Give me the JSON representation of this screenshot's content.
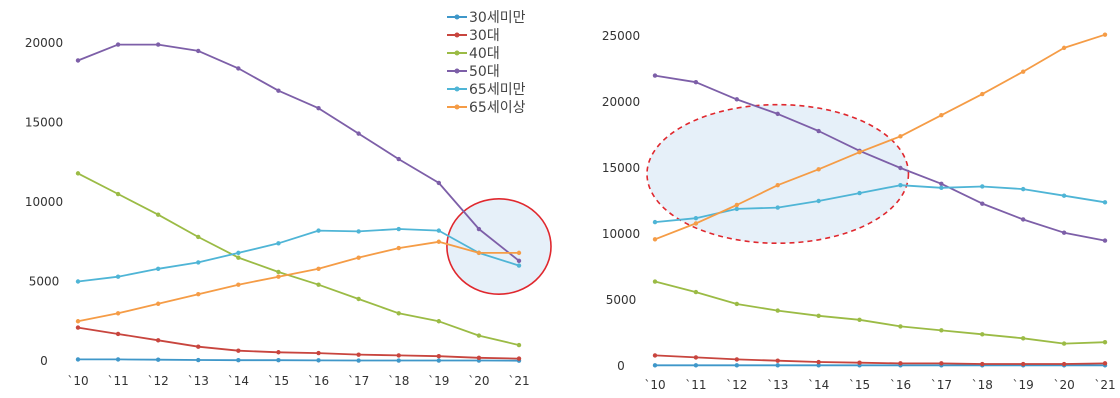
{
  "colors": {
    "30세미만": "#3f97c9",
    "30대": "#c8453e",
    "40대": "#9bbb45",
    "50대": "#7d5fa8",
    "65세미만": "#4fb5d6",
    "65세이상": "#f59c46",
    "highlight_stroke": "#e0282e",
    "highlight_fill": "#e2edf8"
  },
  "chart_data": [
    {
      "type": "line",
      "title": "",
      "xlabel": "",
      "ylabel": "",
      "categories": [
        "`10",
        "`11",
        "`12",
        "`13",
        "`14",
        "`15",
        "`16",
        "`17",
        "`18",
        "`19",
        "`20",
        "`21"
      ],
      "ylim": [
        0,
        20000
      ],
      "yticks": [
        0,
        5000,
        10000,
        15000,
        20000
      ],
      "ytick_labels": [
        "0",
        "5000",
        "10000",
        "15000",
        "20000"
      ],
      "grid": false,
      "legend": {
        "position": "top-right",
        "entries": [
          "30세미만",
          "30대",
          "40대",
          "50대",
          "65세미만",
          "65세이상"
        ]
      },
      "series": [
        {
          "name": "30세미만",
          "values": [
            100,
            100,
            80,
            60,
            50,
            50,
            40,
            30,
            30,
            30,
            30,
            20
          ]
        },
        {
          "name": "30대",
          "values": [
            2100,
            1700,
            1300,
            900,
            650,
            550,
            500,
            400,
            350,
            300,
            200,
            150
          ]
        },
        {
          "name": "40대",
          "values": [
            11800,
            10500,
            9200,
            7800,
            6500,
            5600,
            4800,
            3900,
            3000,
            2500,
            1600,
            1000
          ]
        },
        {
          "name": "50대",
          "values": [
            18900,
            19900,
            19900,
            19500,
            18400,
            17000,
            15900,
            14300,
            12700,
            11200,
            8300,
            6300
          ]
        },
        {
          "name": "65세미만",
          "values": [
            5000,
            5300,
            5800,
            6200,
            6800,
            7400,
            8200,
            8150,
            8300,
            8200,
            6800,
            6000
          ]
        },
        {
          "name": "65세이상",
          "values": [
            2500,
            3000,
            3600,
            4200,
            4800,
            5300,
            5800,
            6500,
            7100,
            7500,
            6800,
            6800
          ]
        }
      ],
      "annotation": {
        "shape": "circle",
        "x_from": "`20",
        "x_to": "`21",
        "y_from": 4200,
        "y_to": 10200
      }
    },
    {
      "type": "line",
      "title": "",
      "xlabel": "",
      "ylabel": "",
      "categories": [
        "`10",
        "`11",
        "`12",
        "`13",
        "`14",
        "`15",
        "`16",
        "`17",
        "`18",
        "`19",
        "`20",
        "`21"
      ],
      "ylim": [
        0,
        25000
      ],
      "yticks": [
        0,
        5000,
        10000,
        15000,
        20000,
        25000
      ],
      "ytick_labels": [
        "0",
        "5000",
        "10000",
        "15000",
        "20000",
        "25000"
      ],
      "grid": false,
      "series": [
        {
          "name": "30세미만",
          "values": [
            50,
            50,
            50,
            50,
            50,
            50,
            50,
            50,
            50,
            50,
            50,
            50
          ]
        },
        {
          "name": "30대",
          "values": [
            800,
            650,
            500,
            400,
            300,
            250,
            200,
            200,
            150,
            150,
            150,
            200
          ]
        },
        {
          "name": "40대",
          "values": [
            6400,
            5600,
            4700,
            4200,
            3800,
            3500,
            3000,
            2700,
            2400,
            2100,
            1700,
            1800
          ]
        },
        {
          "name": "50대",
          "values": [
            22000,
            21500,
            20200,
            19100,
            17800,
            16300,
            15000,
            13800,
            12300,
            11100,
            10100,
            9500
          ]
        },
        {
          "name": "65세미만",
          "values": [
            10900,
            11200,
            11900,
            12000,
            12500,
            13100,
            13700,
            13500,
            13600,
            13400,
            12900,
            12400
          ]
        },
        {
          "name": "65세이상",
          "values": [
            9600,
            10800,
            12200,
            13700,
            14900,
            16200,
            17400,
            19000,
            20600,
            22300,
            24100,
            25100
          ]
        }
      ],
      "annotation": {
        "shape": "dashed-ellipse",
        "x_from": "`10",
        "x_to": "`16",
        "y_from": 9300,
        "y_to": 19800
      }
    }
  ]
}
